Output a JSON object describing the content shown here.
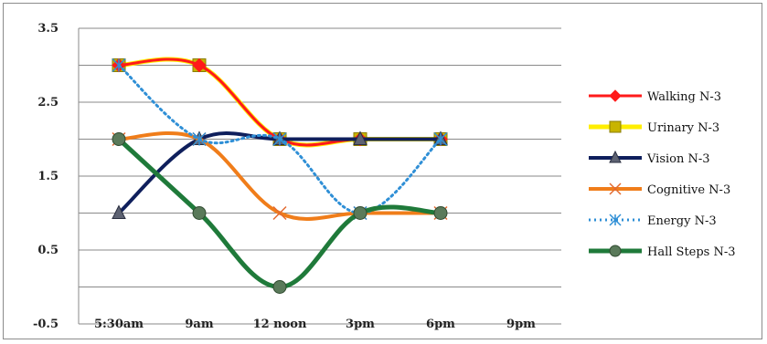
{
  "chart_data": {
    "type": "line",
    "title": "",
    "xlabel": "",
    "ylabel": "",
    "categories": [
      "5:30am",
      "9am",
      "12 noon",
      "3pm",
      "6pm",
      "9pm"
    ],
    "ylim": [
      -0.5,
      3.5
    ],
    "yticks": [
      -0.5,
      0.5,
      1.5,
      2.5,
      3.5
    ],
    "grid": "horizontal",
    "legend_position": "right",
    "series": [
      {
        "name": "Walking N-3",
        "values": [
          3,
          3,
          2,
          2,
          2,
          null
        ],
        "color": "#ff1a1a",
        "marker": "diamond",
        "dash": "solid",
        "width": 3
      },
      {
        "name": "Urinary N-3",
        "values": [
          3,
          3,
          2,
          2,
          2,
          null
        ],
        "color": "#ffee00",
        "marker": "square",
        "dash": "solid",
        "width": 5
      },
      {
        "name": "Vision N-3",
        "values": [
          1,
          2,
          2,
          2,
          2,
          null
        ],
        "color": "#0f1f5c",
        "marker": "triangle",
        "dash": "solid",
        "width": 4
      },
      {
        "name": "Cognitive N-3",
        "values": [
          2,
          2,
          1,
          1,
          1,
          null
        ],
        "color": "#f07d1a",
        "marker": "x",
        "dash": "solid",
        "width": 4
      },
      {
        "name": "Energy N-3",
        "values": [
          3,
          2,
          2,
          1,
          2,
          null
        ],
        "color": "#2f8fd6",
        "marker": "star",
        "dash": "dotted",
        "width": 3
      },
      {
        "name": "Hall Steps N-3",
        "values": [
          2,
          1,
          0,
          1,
          1,
          null
        ],
        "color": "#1f7a3a",
        "marker": "circle",
        "dash": "solid",
        "width": 5
      }
    ]
  }
}
